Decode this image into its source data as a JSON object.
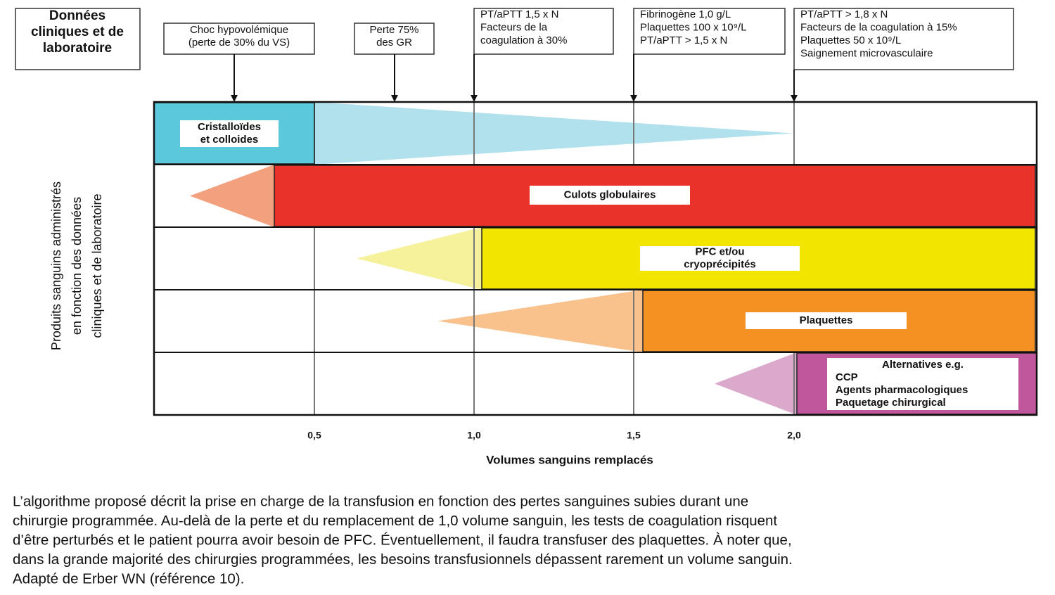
{
  "header": {
    "title_lines": [
      "Données",
      "cliniques et de",
      "laboratoire"
    ]
  },
  "annotations": [
    {
      "lines": [
        "Choc hypovolémique",
        "(perte de 30% du VS)"
      ]
    },
    {
      "lines": [
        "Perte 75%",
        "des GR"
      ]
    },
    {
      "lines": [
        "PT/aPTT 1,5 x N",
        "Facteurs de la",
        "coagulation à 30%"
      ]
    },
    {
      "lines": [
        "Fibrinogène 1,0 g/L",
        "Plaquettes 100 x 10⁹/L",
        "PT/aPTT > 1,5 x N"
      ]
    },
    {
      "lines": [
        "PT/aPTT > 1,8 x N",
        "Facteurs de la coagulation à 15%",
        "Plaquettes 50 x 10⁹/L",
        "Saignement microvasculaire"
      ]
    }
  ],
  "rows": [
    {
      "label_lines": [
        "Cristalloïdes",
        "et colloides"
      ]
    },
    {
      "label_lines": [
        "Culots globulaires"
      ]
    },
    {
      "label_lines": [
        "PFC et/ou",
        "cryoprécipités"
      ]
    },
    {
      "label_lines": [
        "Plaquettes"
      ]
    },
    {
      "label_lines": [
        "Alternatives e.g.",
        "CCP",
        "Agents pharmacologiques",
        "Paquetage chirurgical"
      ]
    }
  ],
  "x_axis": {
    "ticks": [
      "0,5",
      "1,0",
      "1,5",
      "2,0"
    ],
    "title": "Volumes sanguins remplacés"
  },
  "y_axis": {
    "title_lines": [
      "Produits sanguins administrés",
      "en fonction des données",
      "cliniques et de laboratoire"
    ]
  },
  "caption": {
    "lines": [
      "L’algorithme proposé décrit la prise en charge de la transfusion en fonction des pertes sanguines subies durant une",
      "chirurgie programmée. Au-delà de la perte et du remplacement de 1,0 volume sanguin, les tests de coagulation risquent",
      "d’être perturbés et le patient pourra avoir besoin de PFC. Éventuellement, il faudra transfuser des plaquettes. À noter que,",
      "dans la grande majorité des chirurgies programmées, les besoins transfusionnels dépassent rarement un volume sanguin.",
      "Adapté de Erber WN (référence 10)."
    ]
  }
}
